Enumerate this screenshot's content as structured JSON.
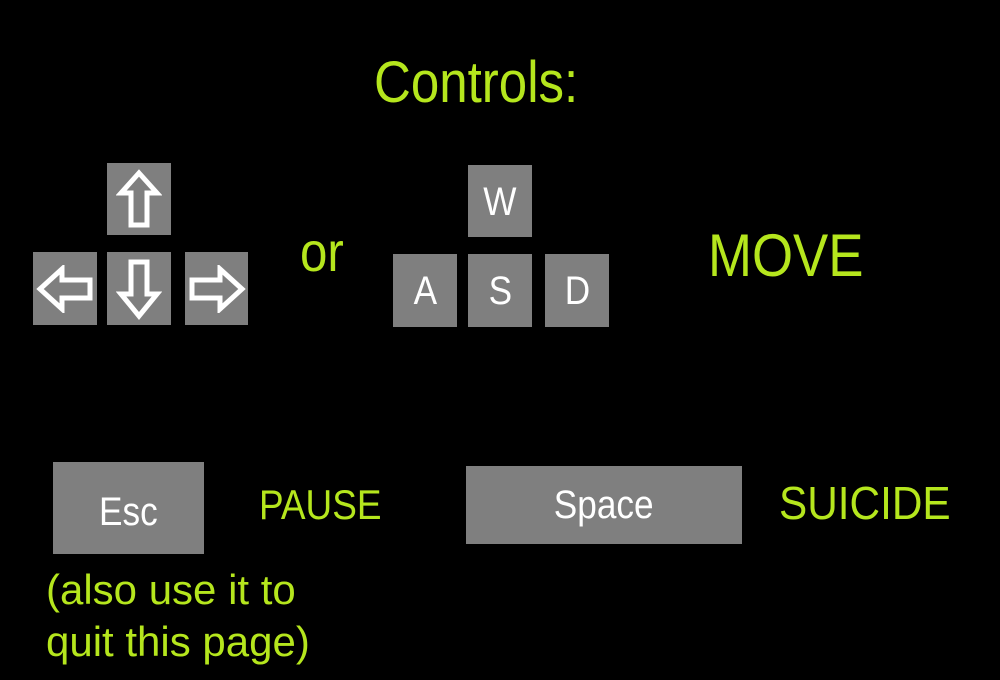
{
  "title": "Controls:",
  "move_group": {
    "arrow_keys": [
      {
        "name": "up",
        "icon": "arrow-up-icon"
      },
      {
        "name": "left",
        "icon": "arrow-left-icon"
      },
      {
        "name": "down",
        "icon": "arrow-down-icon"
      },
      {
        "name": "right",
        "icon": "arrow-right-icon"
      }
    ],
    "or_label": "or",
    "wasd_keys": {
      "w": "W",
      "a": "A",
      "s": "S",
      "d": "D"
    },
    "action_label": "MOVE"
  },
  "pause_group": {
    "key_label": "Esc",
    "action_label": "PAUSE",
    "note_line1": "(also use it to",
    "note_line2": "quit this page)"
  },
  "suicide_group": {
    "key_label": "Space",
    "action_label": "SUICIDE"
  },
  "colors": {
    "background": "#000000",
    "accent_text": "#b5e61d",
    "key_fill": "#7f7f7f",
    "key_text": "#ffffff"
  }
}
